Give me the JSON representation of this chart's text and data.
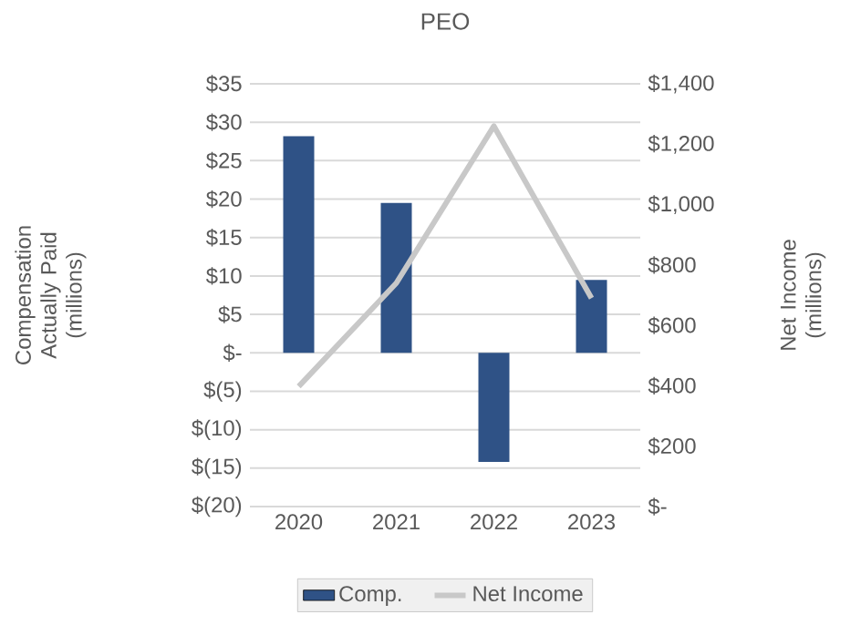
{
  "chart_data": {
    "type": "bar",
    "title": "PEO",
    "ylabel": "Compensation Actually Paid (millions)",
    "y2label": "Net Income (millions)",
    "categories": [
      "2020",
      "2021",
      "2022",
      "2023"
    ],
    "series": [
      {
        "name": "Comp.",
        "color": "#2f5286",
        "values": [
          28.2,
          19.5,
          -14.2,
          9.5
        ]
      },
      {
        "name": "Net Income",
        "type": "line",
        "axis": "y2",
        "color": "#c8c8c8",
        "values": [
          398,
          740,
          1260,
          690
        ]
      }
    ],
    "ylim": [
      -20,
      35
    ],
    "yticks": [
      {
        "value": -20,
        "label": "$(20)"
      },
      {
        "value": -15,
        "label": "$(15)"
      },
      {
        "value": -10,
        "label": "$(10)"
      },
      {
        "value": -5,
        "label": "$(5)"
      },
      {
        "value": 0,
        "label": "$-"
      },
      {
        "value": 5,
        "label": "$5"
      },
      {
        "value": 10,
        "label": "$10"
      },
      {
        "value": 15,
        "label": "$15"
      },
      {
        "value": 20,
        "label": "$20"
      },
      {
        "value": 25,
        "label": "$25"
      },
      {
        "value": 30,
        "label": "$30"
      },
      {
        "value": 35,
        "label": "$35"
      }
    ],
    "y2lim": [
      0,
      1400
    ],
    "y2ticks": [
      {
        "value": 0,
        "label": "$-"
      },
      {
        "value": 200,
        "label": "$200"
      },
      {
        "value": 400,
        "label": "$400"
      },
      {
        "value": 600,
        "label": "$600"
      },
      {
        "value": 800,
        "label": "$800"
      },
      {
        "value": 1000,
        "label": "$1,000"
      },
      {
        "value": 1200,
        "label": "$1,200"
      },
      {
        "value": 1400,
        "label": "$1,400"
      }
    ],
    "grid": "y",
    "legend": "bottom",
    "marker": "none",
    "line_style": "solid"
  }
}
